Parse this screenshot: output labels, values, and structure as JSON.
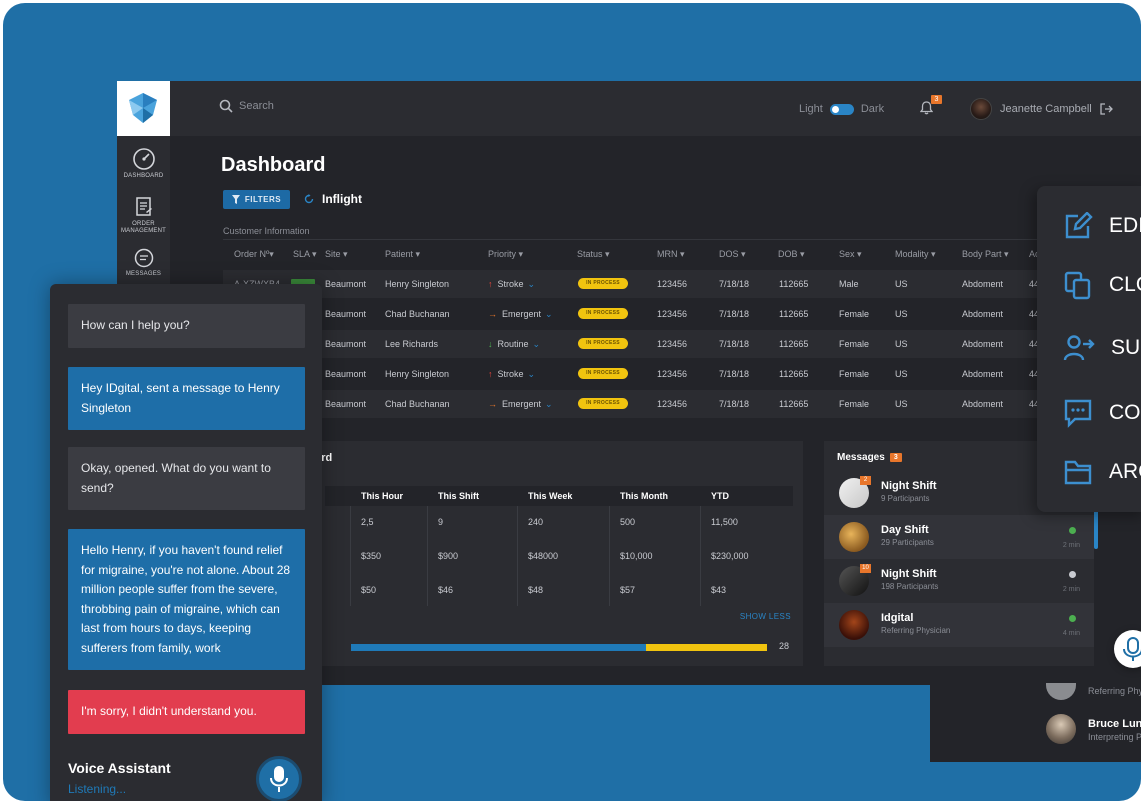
{
  "topbar": {
    "search_placeholder": "Search",
    "theme_light": "Light",
    "theme_dark": "Dark",
    "notification_count": "3",
    "user_name": "Jeanette Campbell"
  },
  "sidebar": {
    "items": [
      {
        "label": "DASHBOARD",
        "icon": "gauge-icon"
      },
      {
        "label": "ORDER MANAGEMENT",
        "icon": "clipboard-icon"
      },
      {
        "label": "MESSAGES",
        "icon": "chat-icon"
      }
    ]
  },
  "page": {
    "title": "Dashboard",
    "filters_label": "FILTERS",
    "inflight_label": "Inflight",
    "section_label": "Customer Information"
  },
  "table": {
    "columns": [
      "Order Nº",
      "SLA",
      "Site",
      "Patient",
      "Priority",
      "Status",
      "MRN",
      "DOS",
      "DOB",
      "Sex",
      "Modality",
      "Body Part",
      "Ac"
    ],
    "rows": [
      {
        "order": "A-XZWXB4",
        "site": "Beaumont",
        "patient": "Henry Singleton",
        "priority": "Stroke",
        "priority_arrow": "↑",
        "priority_color": "#e8453c",
        "status": "IN PROCESS",
        "mrn": "123456",
        "dos": "7/18/18",
        "dob": "112665",
        "sex": "Male",
        "modality": "US",
        "body": "Abdoment",
        "ac": "44"
      },
      {
        "order": "",
        "site": "Beaumont",
        "patient": "Chad Buchanan",
        "priority": "Emergent",
        "priority_arrow": "→",
        "priority_color": "#e8762b",
        "status": "IN PROCESS",
        "mrn": "123456",
        "dos": "7/18/18",
        "dob": "112665",
        "sex": "Female",
        "modality": "US",
        "body": "Abdoment",
        "ac": "44"
      },
      {
        "order": "",
        "site": "Beaumont",
        "patient": "Lee Richards",
        "priority": "Routine",
        "priority_arrow": "↓",
        "priority_color": "#4caf50",
        "status": "IN PROCESS",
        "mrn": "123456",
        "dos": "7/18/18",
        "dob": "112665",
        "sex": "Female",
        "modality": "US",
        "body": "Abdoment",
        "ac": "44"
      },
      {
        "order": "",
        "site": "Beaumont",
        "patient": "Henry Singleton",
        "priority": "Stroke",
        "priority_arrow": "↑",
        "priority_color": "#e8453c",
        "status": "IN PROCESS",
        "mrn": "123456",
        "dos": "7/18/18",
        "dob": "112665",
        "sex": "Female",
        "modality": "US",
        "body": "Abdoment",
        "ac": "44"
      },
      {
        "order": "",
        "site": "Beaumont",
        "patient": "Chad Buchanan",
        "priority": "Emergent",
        "priority_arrow": "→",
        "priority_color": "#e8762b",
        "status": "IN PROCESS",
        "mrn": "123456",
        "dos": "7/18/18",
        "dob": "112665",
        "sex": "Female",
        "modality": "US",
        "body": "Abdoment",
        "ac": "44"
      }
    ]
  },
  "dashboard_panel": {
    "title_fragment": "hboard",
    "columns": [
      "This Hour",
      "This Shift",
      "This Week",
      "This Month",
      "YTD"
    ],
    "rows": [
      [
        "2,5",
        "9",
        "240",
        "500",
        "11,500"
      ],
      [
        "$350",
        "$900",
        "$48000",
        "$10,000",
        "$230,000"
      ],
      [
        "$50",
        "$46",
        "$48",
        "$57",
        "$43"
      ]
    ],
    "show_less": "SHOW LESS",
    "progress_fraction": 0.71,
    "progress_value": "28"
  },
  "messages": {
    "title": "Messages",
    "count": "3",
    "items": [
      {
        "name": "Night Shift",
        "sub": "9 Participants",
        "time": "",
        "badge": "2",
        "dot": ""
      },
      {
        "name": "Day Shift",
        "sub": "29 Participants",
        "time": "2 min",
        "badge": "",
        "dot": "#4caf50"
      },
      {
        "name": "Night Shift",
        "sub": "198 Participants",
        "time": "2 min",
        "badge": "10",
        "dot": "#c9cbd1"
      },
      {
        "name": "Idgital",
        "sub": "Referring Physician",
        "time": "4 min",
        "badge": "",
        "dot": "#4caf50"
      }
    ]
  },
  "action_menu": {
    "items": [
      {
        "label": "EDI",
        "icon": "edit-icon"
      },
      {
        "label": "CLO",
        "icon": "clone-icon"
      },
      {
        "label": "SUP",
        "icon": "user-transfer-icon"
      },
      {
        "label": "CO",
        "icon": "comment-icon"
      },
      {
        "label": "ARC",
        "icon": "folder-icon"
      }
    ]
  },
  "peek_list": {
    "items": [
      {
        "name": "",
        "sub": "Referring Phy"
      },
      {
        "name": "Bruce Luna",
        "sub": "Interpreting Ph"
      }
    ]
  },
  "chat": {
    "messages": [
      {
        "text": "How can I help you?",
        "style": "grey"
      },
      {
        "text": "Hey IDgital, sent a message to Henry Singleton",
        "style": "blue"
      },
      {
        "text": "Okay, opened. What do you want to send?",
        "style": "grey"
      },
      {
        "text": "Hello Henry, if you haven't found relief for migraine, you're not alone. About 28 million people suffer from the severe, throbbing pain of migraine, which can last from hours to days, keeping sufferers from family, work",
        "style": "blue"
      },
      {
        "text": "I'm sorry, I didn't understand you.",
        "style": "red"
      }
    ],
    "assistant_title": "Voice Assistant",
    "assistant_status": "Listening..."
  },
  "colors": {
    "background": "#1f6fa6",
    "accent": "#2a85c6",
    "status_yellow": "#f1c40f",
    "alert_red": "#e23d4f",
    "badge_orange": "#e8762b"
  }
}
